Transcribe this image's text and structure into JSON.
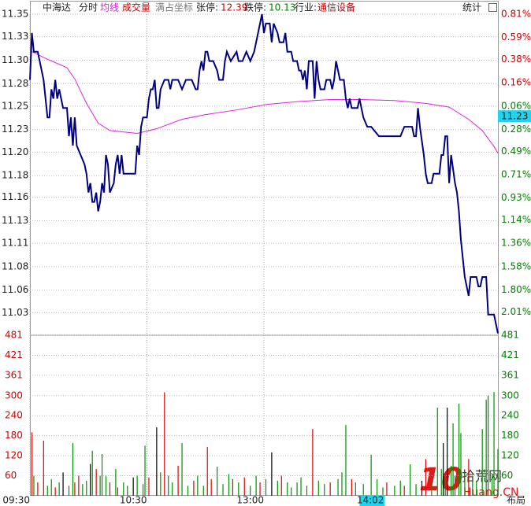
{
  "header": {
    "stock": "中海达",
    "coords": "满占坐标",
    "limit_up_label": "张停:",
    "limit_up": 12.39,
    "limit_down_label": "跌停:",
    "limit_down": 10.13,
    "industry_label": "行业:",
    "industry": "通信设备",
    "stats": "统计",
    "layout": "布局"
  },
  "watermark": {
    "number": "10",
    "brand": "拾荒网",
    "site": "Huang.CN"
  },
  "chart_data": {
    "type": "line",
    "xlim": [
      0,
      240
    ],
    "xticks": [
      {
        "value": 0,
        "label": "09:30"
      },
      {
        "value": 60,
        "label": "10:30"
      },
      {
        "value": 120,
        "label": "13:00"
      }
    ],
    "ylim": [
      11.008,
      11.35
    ],
    "yticks": [
      {
        "value": 11.35,
        "label": "11.35"
      },
      {
        "value": 11.326,
        "label": "11.33"
      },
      {
        "value": 11.301,
        "label": "11.30"
      },
      {
        "value": 11.276,
        "label": "11.28"
      },
      {
        "value": 11.252,
        "label": "11.25"
      },
      {
        "value": 11.227,
        "label": "11.23"
      },
      {
        "value": 11.203,
        "label": "11.20"
      },
      {
        "value": 11.178,
        "label": "11.18"
      },
      {
        "value": 11.155,
        "label": "11.16"
      },
      {
        "value": 11.13,
        "label": "11.13"
      },
      {
        "value": 11.106,
        "label": "11.11"
      },
      {
        "value": 11.081,
        "label": "11.08"
      },
      {
        "value": 11.056,
        "label": "11.06"
      },
      {
        "value": 11.032,
        "label": "11.03"
      }
    ],
    "y2lim": [
      -2.23,
      0.81
    ],
    "y2ticks": [
      {
        "value": 0.81,
        "label": "0.81%"
      },
      {
        "value": 0.59,
        "label": "0.59%"
      },
      {
        "value": 0.38,
        "label": "0.38%"
      },
      {
        "value": 0.16,
        "label": "0.16%"
      },
      {
        "value": -0.06,
        "label": "0.06%"
      },
      {
        "value": -0.28,
        "label": "0.28%"
      },
      {
        "value": -0.49,
        "label": "0.49%"
      },
      {
        "value": -0.71,
        "label": "0.71%"
      },
      {
        "value": -0.93,
        "label": "0.93%"
      },
      {
        "value": -1.14,
        "label": "1.14%"
      },
      {
        "value": -1.36,
        "label": "1.36%"
      },
      {
        "value": -1.58,
        "label": "1.58%"
      },
      {
        "value": -1.8,
        "label": "1.80%"
      },
      {
        "value": -2.01,
        "label": "2.01%"
      }
    ],
    "grid": true,
    "series": [
      {
        "name": "分时",
        "color": "#000080",
        "x": [
          0,
          1,
          2,
          4,
          5,
          7,
          8,
          9,
          10,
          11,
          12,
          13,
          14,
          15,
          17,
          19,
          20,
          21,
          22,
          23,
          24,
          26,
          28,
          29,
          30,
          31,
          32,
          33,
          34,
          35,
          36,
          37,
          38,
          39,
          40,
          41,
          43,
          44,
          45,
          46,
          47,
          48,
          50,
          54,
          55,
          56,
          57,
          58,
          59,
          60,
          61,
          62,
          63,
          64,
          65,
          66,
          67,
          69,
          71,
          72,
          73,
          76,
          78,
          80,
          83,
          85,
          86,
          87,
          88,
          89,
          90,
          91,
          92,
          94,
          96,
          97,
          99,
          100,
          101,
          103,
          106,
          107,
          109,
          111,
          113,
          115,
          119,
          120,
          121,
          123,
          124,
          125,
          127,
          128,
          130,
          131,
          132,
          134,
          135,
          137,
          138,
          139,
          140,
          141,
          142,
          143,
          145,
          146,
          147,
          148,
          149,
          151,
          152,
          154,
          155,
          156,
          157,
          159,
          161,
          162,
          163,
          164,
          165,
          168,
          169,
          171,
          173,
          175,
          179,
          190,
          192,
          196,
          197,
          198,
          199,
          200,
          202,
          203,
          204,
          206,
          207,
          210,
          211,
          212,
          213,
          214,
          215,
          216,
          218,
          219,
          220,
          221,
          222,
          223,
          225,
          226,
          229,
          230,
          231,
          232,
          234,
          235,
          238,
          240
        ],
        "values": [
          11.28,
          11.33,
          11.31,
          11.31,
          11.3,
          11.28,
          11.26,
          11.24,
          11.24,
          11.27,
          11.26,
          11.28,
          11.26,
          11.27,
          11.25,
          11.25,
          11.22,
          11.24,
          11.21,
          11.24,
          11.21,
          11.2,
          11.19,
          11.18,
          11.16,
          11.17,
          11.15,
          11.15,
          11.16,
          11.14,
          11.15,
          11.17,
          11.16,
          11.2,
          11.19,
          11.16,
          11.17,
          11.19,
          11.2,
          11.18,
          11.2,
          11.18,
          11.18,
          11.18,
          11.21,
          11.2,
          11.23,
          11.24,
          11.24,
          11.24,
          11.26,
          11.27,
          11.27,
          11.28,
          11.25,
          11.25,
          11.27,
          11.28,
          11.28,
          11.27,
          11.28,
          11.28,
          11.27,
          11.28,
          11.28,
          11.27,
          11.27,
          11.29,
          11.3,
          11.29,
          11.31,
          11.31,
          11.3,
          11.3,
          11.29,
          11.28,
          11.28,
          11.3,
          11.31,
          11.3,
          11.31,
          11.3,
          11.3,
          11.31,
          11.3,
          11.31,
          11.35,
          11.33,
          11.34,
          11.34,
          11.32,
          11.34,
          11.33,
          11.32,
          11.32,
          11.33,
          11.31,
          11.31,
          11.3,
          11.3,
          11.29,
          11.29,
          11.28,
          11.29,
          11.27,
          11.3,
          11.3,
          11.26,
          11.3,
          11.28,
          11.27,
          11.27,
          11.28,
          11.28,
          11.27,
          11.28,
          11.3,
          11.28,
          11.28,
          11.26,
          11.25,
          11.26,
          11.25,
          11.25,
          11.26,
          11.24,
          11.23,
          11.23,
          11.22,
          11.22,
          11.23,
          11.23,
          11.22,
          11.22,
          11.25,
          11.23,
          11.2,
          11.18,
          11.17,
          11.17,
          11.18,
          11.18,
          11.2,
          11.2,
          11.22,
          11.22,
          11.17,
          11.2,
          11.17,
          11.16,
          11.14,
          11.11,
          11.09,
          11.07,
          11.05,
          11.07,
          11.07,
          11.06,
          11.06,
          11.07,
          11.07,
          11.03,
          11.03,
          11.01
        ]
      },
      {
        "name": "均线",
        "color": "#e020e0",
        "x": [
          1,
          9,
          19,
          23,
          29,
          35,
          41,
          55,
          65,
          78,
          90,
          106,
          122,
          138,
          154,
          170,
          187,
          203,
          215,
          225,
          232,
          238,
          240
        ],
        "values": [
          11.31,
          11.302,
          11.293,
          11.281,
          11.255,
          11.234,
          11.226,
          11.223,
          11.228,
          11.238,
          11.243,
          11.248,
          11.254,
          11.257,
          11.259,
          11.259,
          11.258,
          11.255,
          11.251,
          11.238,
          11.226,
          11.209,
          11.202
        ]
      }
    ],
    "volume": {
      "name": "成交量",
      "ylim": [
        0,
        481
      ],
      "yticks": [
        481,
        421,
        361,
        300,
        240,
        180,
        120,
        60
      ],
      "x": [
        1,
        2,
        4,
        7,
        9,
        11,
        13,
        15,
        17,
        20,
        22,
        23,
        25,
        27,
        29,
        31,
        32,
        34,
        36,
        37,
        39,
        41,
        44,
        45,
        48,
        50,
        53,
        55,
        58,
        59,
        61,
        65,
        67,
        69,
        71,
        73,
        76,
        78,
        81,
        84,
        86,
        89,
        91,
        93,
        96,
        99,
        102,
        104,
        107,
        110,
        113,
        116,
        118,
        121,
        124,
        127,
        129,
        132,
        134,
        137,
        139,
        142,
        145,
        148,
        151,
        154,
        158,
        160,
        162,
        165,
        167,
        171,
        175,
        178,
        181,
        183,
        187,
        190,
        192,
        195,
        198,
        201,
        203,
        206,
        209,
        211,
        212,
        213,
        214,
        216,
        217,
        218,
        220,
        221,
        223,
        225,
        227,
        229,
        232,
        234,
        235,
        237,
        238,
        240
      ],
      "values": [
        190,
        60,
        40,
        165,
        30,
        50,
        25,
        40,
        70,
        30,
        158,
        40,
        60,
        35,
        45,
        95,
        135,
        80,
        60,
        125,
        60,
        40,
        80,
        25,
        40,
        30,
        55,
        60,
        35,
        150,
        55,
        205,
        70,
        310,
        60,
        40,
        90,
        158,
        30,
        45,
        60,
        30,
        146,
        50,
        87,
        35,
        65,
        50,
        40,
        55,
        30,
        60,
        40,
        50,
        130,
        45,
        60,
        40,
        25,
        40,
        55,
        30,
        200,
        45,
        35,
        40,
        50,
        70,
        212,
        50,
        40,
        35,
        123,
        50,
        25,
        40,
        30,
        45,
        30,
        94,
        35,
        45,
        110,
        40,
        264,
        80,
        158,
        50,
        264,
        90,
        217,
        60,
        276,
        188,
        70,
        110,
        60,
        45,
        200,
        288,
        300,
        60,
        311,
        140
      ],
      "colors": [
        "#e00000",
        "#009000",
        "#e00000",
        "#e00000",
        "#009000",
        "#009000",
        "#e00000",
        "#009000",
        "#000000",
        "#009000",
        "#009000",
        "#e00000",
        "#e00000",
        "#009000",
        "#009000",
        "#000000",
        "#009000",
        "#e00000",
        "#009000",
        "#009000",
        "#009000",
        "#e00000",
        "#009000",
        "#e00000",
        "#009000",
        "#009000",
        "#000000",
        "#009000",
        "#009000",
        "#009000",
        "#e00000",
        "#000000",
        "#009000",
        "#e00000",
        "#009000",
        "#009000",
        "#e00000",
        "#009000",
        "#009000",
        "#e00000",
        "#009000",
        "#009000",
        "#e00000",
        "#e00000",
        "#009000",
        "#009000",
        "#009000",
        "#e00000",
        "#009000",
        "#e00000",
        "#009000",
        "#009000",
        "#e00000",
        "#009000",
        "#000000",
        "#009000",
        "#e00000",
        "#009000",
        "#009000",
        "#009000",
        "#009000",
        "#009000",
        "#e00000",
        "#009000",
        "#009000",
        "#e00000",
        "#009000",
        "#009000",
        "#009000",
        "#e00000",
        "#009000",
        "#009000",
        "#009000",
        "#009000",
        "#009000",
        "#e00000",
        "#009000",
        "#009000",
        "#e00000",
        "#009000",
        "#009000",
        "#000000",
        "#e00000",
        "#009000",
        "#009000",
        "#009000",
        "#000000",
        "#009000",
        "#000000",
        "#009000",
        "#009000",
        "#009000",
        "#009000",
        "#009000",
        "#009000",
        "#e00000",
        "#009000",
        "#009000",
        "#009000",
        "#009000",
        "#009000",
        "#009000",
        "#009000",
        "#009000"
      ]
    },
    "cursor": {
      "time": {
        "value": 182,
        "label": "14:02"
      },
      "price": 11.23
    }
  }
}
